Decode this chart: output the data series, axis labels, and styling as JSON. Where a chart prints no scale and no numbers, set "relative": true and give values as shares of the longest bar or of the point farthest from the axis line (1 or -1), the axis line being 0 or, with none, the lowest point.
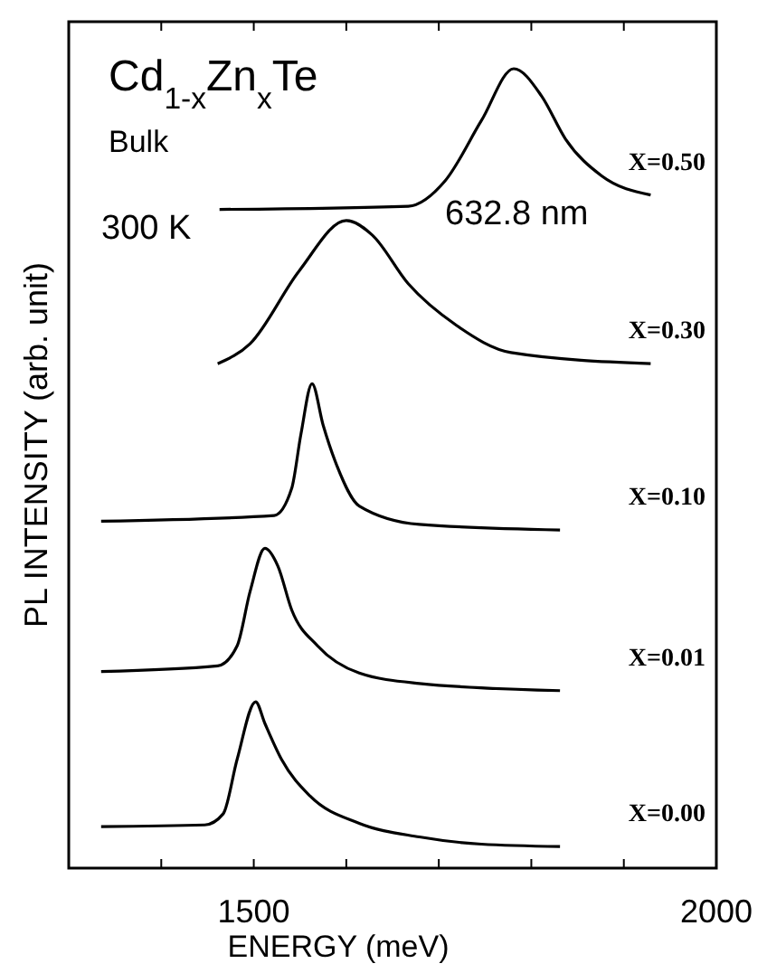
{
  "chart_data": {
    "type": "line",
    "relative": true,
    "xlabel": "ENERGY (meV)",
    "ylabel": "PL INTENSITY (arb. unit)",
    "annotations": [
      "Cd$_{1-x}$Zn$_{x}$Te",
      "Bulk",
      "300 K",
      "632.8 nm"
    ],
    "xlim": [
      1300,
      2000
    ],
    "xticks": [
      {
        "value": 1400,
        "label": null
      },
      1500,
      {
        "value": 1600,
        "label": null
      },
      {
        "value": 1700,
        "label": null
      },
      {
        "value": 1800,
        "label": null
      },
      {
        "value": 1900,
        "label": null
      },
      2000
    ],
    "tick_labels": "x",
    "grid": false,
    "marker": "none",
    "line_style": "solid",
    "series": [
      {
        "name": "X=0.50",
        "color": "#000000",
        "x": [
          1463,
          1667,
          1707,
          1746,
          1781,
          1811,
          1837,
          1876,
          1929
        ],
        "values": [
          0.824,
          0.828,
          0.86,
          0.935,
          1.0,
          0.966,
          0.912,
          0.866,
          0.842
        ]
      },
      {
        "name": "X=0.30",
        "color": "#000000",
        "x": [
          1461,
          1496,
          1549,
          1600,
          1628,
          1667,
          1719,
          1778,
          1929
        ],
        "values": [
          0.631,
          0.656,
          0.747,
          0.81,
          0.792,
          0.731,
          0.679,
          0.645,
          0.631
        ]
      },
      {
        "name": "X=0.10",
        "color": "#000000",
        "x": [
          1335,
          1522,
          1541,
          1551,
          1563,
          1575,
          1590,
          1614,
          1679,
          1831
        ],
        "values": [
          0.434,
          0.441,
          0.475,
          0.543,
          0.606,
          0.554,
          0.503,
          0.453,
          0.43,
          0.423
        ]
      },
      {
        "name": "X=0.01",
        "color": "#000000",
        "x": [
          1335,
          1461,
          1482,
          1496,
          1512,
          1526,
          1541,
          1569,
          1614,
          1679,
          1831
        ],
        "values": [
          0.246,
          0.253,
          0.278,
          0.346,
          0.4,
          0.378,
          0.323,
          0.278,
          0.244,
          0.231,
          0.222
        ]
      },
      {
        "name": "X=0.00",
        "color": "#000000",
        "x": [
          1335,
          1447,
          1467,
          1482,
          1502,
          1512,
          1530,
          1561,
          1614,
          1679,
          1746,
          1831
        ],
        "values": [
          0.052,
          0.054,
          0.068,
          0.136,
          0.208,
          0.181,
          0.136,
          0.09,
          0.056,
          0.039,
          0.03,
          0.027
        ]
      }
    ]
  }
}
